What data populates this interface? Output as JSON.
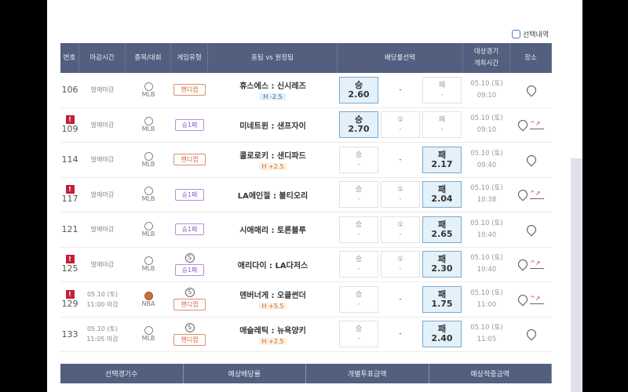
{
  "selection_toggle": "선택내역",
  "headers": [
    "번호",
    "마감시간",
    "종목/대회",
    "게임유형",
    "홈팀 vs 원정팀",
    "배당률선택",
    "대상경기\n개최시간",
    "장소"
  ],
  "rows": [
    {
      "no": "106",
      "alert": false,
      "deadline": "발매마감",
      "league": "MLB",
      "sport": "baseball",
      "special": false,
      "type": "핸디캡",
      "type_kind": "h",
      "teams": "휴스에스 : 신시레즈",
      "handicap": "H -2.5",
      "hc_kind": "m",
      "win": {
        "label": "승",
        "odds": "2.60",
        "on": true
      },
      "draw": {
        "label": "",
        "odds": "-",
        "none": true
      },
      "lose": {
        "label": "패",
        "odds": "-",
        "on": false
      },
      "date": "05.10 (토)",
      "time": "09:10",
      "trend": false
    },
    {
      "no": "109",
      "alert": true,
      "deadline": "발매마감",
      "league": "MLB",
      "sport": "baseball",
      "special": false,
      "type": "승1패",
      "type_kind": "w",
      "teams": "미네트윈 : 샌프자이",
      "handicap": "",
      "win": {
        "label": "승",
        "odds": "2.70",
        "on": true
      },
      "draw": {
        "label": "①",
        "odds": "-"
      },
      "lose": {
        "label": "패",
        "odds": "-"
      },
      "date": "05.10 (토)",
      "time": "09:10",
      "trend": true
    },
    {
      "no": "114",
      "alert": false,
      "deadline": "발매마감",
      "league": "MLB",
      "sport": "baseball",
      "special": false,
      "type": "핸디캡",
      "type_kind": "h",
      "teams": "콜로로키 : 샌디파드",
      "handicap": "H +2.5",
      "hc_kind": "p",
      "win": {
        "label": "승",
        "odds": "-"
      },
      "draw": {
        "label": "",
        "odds": "-",
        "none": true
      },
      "lose": {
        "label": "패",
        "odds": "2.17",
        "on": true
      },
      "date": "05.10 (토)",
      "time": "09:40",
      "trend": false
    },
    {
      "no": "117",
      "alert": true,
      "deadline": "발매마감",
      "league": "MLB",
      "sport": "baseball",
      "special": false,
      "type": "승1패",
      "type_kind": "w",
      "teams": "LA에인절 : 볼티오리",
      "handicap": "",
      "win": {
        "label": "승",
        "odds": "-"
      },
      "draw": {
        "label": "①",
        "odds": "-"
      },
      "lose": {
        "label": "패",
        "odds": "2.04",
        "on": true
      },
      "date": "05.10 (토)",
      "time": "10:38",
      "trend": true
    },
    {
      "no": "121",
      "alert": false,
      "deadline": "발매마감",
      "league": "MLB",
      "sport": "baseball",
      "special": false,
      "type": "승1패",
      "type_kind": "w",
      "teams": "시애매리 : 토론블루",
      "handicap": "",
      "win": {
        "label": "승",
        "odds": "-"
      },
      "draw": {
        "label": "①",
        "odds": "-"
      },
      "lose": {
        "label": "패",
        "odds": "2.65",
        "on": true
      },
      "date": "05.10 (토)",
      "time": "10:40",
      "trend": false
    },
    {
      "no": "125",
      "alert": true,
      "deadline": "발매마감",
      "league": "MLB",
      "sport": "baseball",
      "special": true,
      "type": "승1패",
      "type_kind": "w",
      "teams": "애리다이 : LA다저스",
      "handicap": "",
      "win": {
        "label": "승",
        "odds": "-"
      },
      "draw": {
        "label": "①",
        "odds": "-"
      },
      "lose": {
        "label": "패",
        "odds": "2.30",
        "on": true
      },
      "date": "05.10 (토)",
      "time": "10:40",
      "trend": true
    },
    {
      "no": "129",
      "alert": true,
      "deadline": "05.10 (토)\n11:00 마감",
      "league": "NBA",
      "sport": "basketball",
      "special": true,
      "type": "핸디캡",
      "type_kind": "h",
      "teams": "덴버너게 : 오클썬더",
      "handicap": "H +5.5",
      "hc_kind": "p",
      "win": {
        "label": "승",
        "odds": "-"
      },
      "draw": {
        "label": "",
        "odds": "-",
        "none": true
      },
      "lose": {
        "label": "패",
        "odds": "1.75",
        "on": true
      },
      "date": "05.10 (토)",
      "time": "11:00",
      "trend": true
    },
    {
      "no": "133",
      "alert": false,
      "deadline": "05.10 (토)\n11:05 마감",
      "league": "MLB",
      "sport": "baseball",
      "special": true,
      "type": "핸디캡",
      "type_kind": "h",
      "teams": "애슬레틱 : 뉴욕양키",
      "handicap": "H +2.5",
      "hc_kind": "p",
      "win": {
        "label": "승",
        "odds": "-"
      },
      "draw": {
        "label": "",
        "odds": "-",
        "none": true
      },
      "lose": {
        "label": "패",
        "odds": "2.40",
        "on": true
      },
      "date": "05.10 (토)",
      "time": "11:05",
      "trend": false
    }
  ],
  "summary": [
    "선택경기수",
    "예상배당률",
    "개별투표금액",
    "예상적중금액"
  ],
  "colors": {
    "header": "#525f7f",
    "selected_odds": "#e3f1fb",
    "alert": "#c0203a"
  }
}
